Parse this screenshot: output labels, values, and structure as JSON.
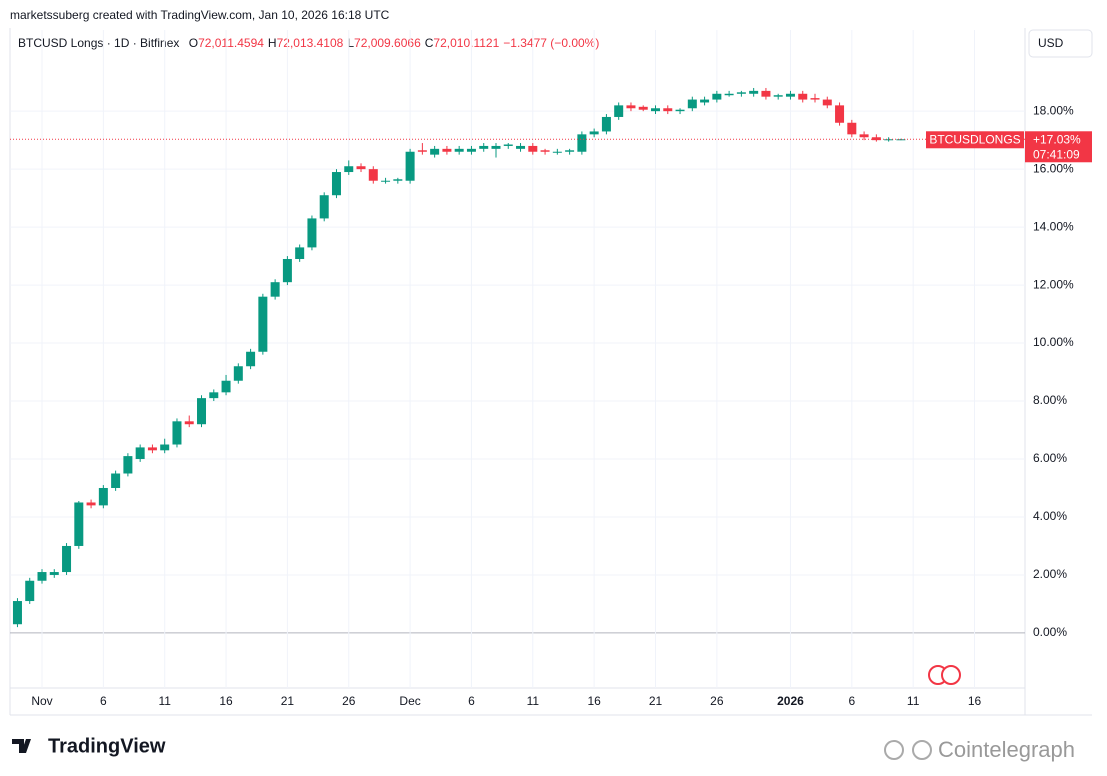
{
  "header": {
    "attribution": "marketssuberg created with TradingView.com, Jan 10, 2026 16:18 UTC",
    "symbol": "BTCUSD Longs · 1D · Bitfinex",
    "ohlc": [
      {
        "key": "O",
        "value": "72,011.4594"
      },
      {
        "key": "H",
        "value": "72,013.4108"
      },
      {
        "key": "L",
        "value": "72,009.6066"
      },
      {
        "key": "C",
        "value": "72,010.1121"
      }
    ],
    "change": "−1.3477 (−0.00%)"
  },
  "currency_button": "USD",
  "footer": {
    "logo": "TradingView",
    "watermark": "Cointelegraph"
  },
  "chart_data": {
    "type": "candlestick",
    "categories": [
      null,
      null,
      "Nov",
      null,
      null,
      null,
      null,
      "6",
      null,
      null,
      null,
      null,
      "11",
      null,
      null,
      null,
      null,
      "16",
      null,
      null,
      null,
      null,
      "21",
      null,
      null,
      null,
      null,
      "26",
      null,
      null,
      null,
      null,
      "Dec",
      null,
      null,
      null,
      null,
      "6",
      null,
      null,
      null,
      null,
      "11",
      null,
      null,
      null,
      null,
      "16",
      null,
      null,
      null,
      null,
      "21",
      null,
      null,
      null,
      null,
      "26",
      null,
      null,
      null,
      null,
      null,
      "2026",
      null,
      null,
      null,
      null,
      "6",
      null,
      null,
      null,
      null,
      "11",
      null,
      null,
      null,
      null,
      "16",
      null,
      null,
      null,
      null
    ],
    "open": [
      0.3,
      1.1,
      1.8,
      2.0,
      2.1,
      3.0,
      4.5,
      4.4,
      5.0,
      5.5,
      6.0,
      6.4,
      6.3,
      6.5,
      7.3,
      7.2,
      8.1,
      8.3,
      8.7,
      9.2,
      9.7,
      11.6,
      12.1,
      12.9,
      13.3,
      14.3,
      15.1,
      15.9,
      16.1,
      16.0,
      15.6,
      15.6,
      15.6,
      16.65,
      16.5,
      16.7,
      16.6,
      16.6,
      16.7,
      16.7,
      16.8,
      16.7,
      16.8,
      16.65,
      16.6,
      16.6,
      16.6,
      17.2,
      17.3,
      17.8,
      18.2,
      18.15,
      18.0,
      18.1,
      18.0,
      18.1,
      18.3,
      18.4,
      18.55,
      18.6,
      18.6,
      18.7,
      18.5,
      18.5,
      18.6,
      18.45,
      18.4,
      18.2,
      17.6,
      17.2,
      17.1,
      17.0,
      17.03,
      null,
      null,
      null,
      null,
      null,
      null,
      null,
      null,
      null,
      null
    ],
    "high": [
      1.2,
      1.9,
      2.2,
      2.2,
      3.1,
      4.55,
      4.6,
      5.1,
      5.6,
      6.2,
      6.5,
      6.5,
      6.7,
      7.4,
      7.5,
      8.2,
      8.4,
      8.9,
      9.3,
      9.8,
      11.7,
      12.2,
      13.0,
      13.4,
      14.4,
      15.2,
      16.0,
      16.3,
      16.2,
      16.1,
      15.7,
      15.7,
      16.7,
      16.9,
      16.8,
      16.8,
      16.8,
      16.8,
      16.9,
      16.9,
      16.9,
      16.9,
      16.9,
      16.7,
      16.7,
      16.7,
      17.3,
      17.4,
      17.9,
      18.3,
      18.3,
      18.2,
      18.2,
      18.2,
      18.1,
      18.5,
      18.5,
      18.7,
      18.7,
      18.7,
      18.8,
      18.8,
      18.6,
      18.7,
      18.7,
      18.6,
      18.5,
      18.3,
      17.7,
      17.3,
      17.2,
      17.1,
      17.05,
      null,
      null,
      null,
      null,
      null,
      null,
      null,
      null,
      null,
      null
    ],
    "low": [
      0.2,
      1.0,
      1.7,
      1.9,
      2.0,
      2.9,
      4.3,
      4.3,
      4.9,
      5.4,
      5.9,
      6.2,
      6.2,
      6.4,
      7.1,
      7.1,
      8.0,
      8.2,
      8.6,
      9.1,
      9.6,
      11.5,
      12.0,
      12.8,
      13.2,
      14.2,
      15.0,
      15.8,
      15.9,
      15.5,
      15.5,
      15.5,
      15.5,
      16.5,
      16.4,
      16.5,
      16.5,
      16.5,
      16.6,
      16.4,
      16.7,
      16.6,
      16.5,
      16.5,
      16.5,
      16.5,
      16.5,
      17.1,
      17.2,
      17.7,
      18.0,
      18.0,
      17.9,
      17.9,
      17.9,
      18.0,
      18.2,
      18.3,
      18.5,
      18.5,
      18.5,
      18.4,
      18.4,
      18.4,
      18.3,
      18.3,
      18.1,
      17.5,
      17.1,
      17.0,
      16.95,
      16.95,
      17.0,
      null,
      null,
      null,
      null,
      null,
      null,
      null,
      null,
      null,
      null
    ],
    "close": [
      1.1,
      1.8,
      2.1,
      2.1,
      3.0,
      4.5,
      4.4,
      5.0,
      5.5,
      6.1,
      6.4,
      6.3,
      6.5,
      7.3,
      7.2,
      8.1,
      8.3,
      8.7,
      9.2,
      9.7,
      11.6,
      12.1,
      12.9,
      13.3,
      14.3,
      15.1,
      15.9,
      16.1,
      16.0,
      15.6,
      15.6,
      15.65,
      16.6,
      16.6,
      16.7,
      16.6,
      16.7,
      16.7,
      16.8,
      16.8,
      16.85,
      16.8,
      16.6,
      16.6,
      16.6,
      16.65,
      17.2,
      17.3,
      17.8,
      18.2,
      18.1,
      18.05,
      18.1,
      18.0,
      18.05,
      18.4,
      18.4,
      18.6,
      18.6,
      18.65,
      18.7,
      18.5,
      18.55,
      18.6,
      18.4,
      18.4,
      18.2,
      17.6,
      17.2,
      17.1,
      17.0,
      17.03,
      17.03,
      null,
      null,
      null,
      null,
      null,
      null,
      null,
      null,
      null,
      null
    ],
    "ylim": [
      -1.9,
      20.8
    ],
    "yticks": [
      {
        "value": 0,
        "label": "0.00%"
      },
      {
        "value": 2,
        "label": "2.00%"
      },
      {
        "value": 4,
        "label": "4.00%"
      },
      {
        "value": 6,
        "label": "6.00%"
      },
      {
        "value": 8,
        "label": "8.00%"
      },
      {
        "value": 10,
        "label": "10.00%"
      },
      {
        "value": 12,
        "label": "12.00%"
      },
      {
        "value": 14,
        "label": "14.00%"
      },
      {
        "value": 16,
        "label": "16.00%"
      },
      {
        "value": 18,
        "label": "18.00%"
      }
    ],
    "grid": true,
    "up_color": "#089981",
    "down_color": "#f23645",
    "last_label": {
      "name": "BTCUSDLONGS",
      "value": "+17.03%",
      "countdown": "07:41:09"
    }
  }
}
